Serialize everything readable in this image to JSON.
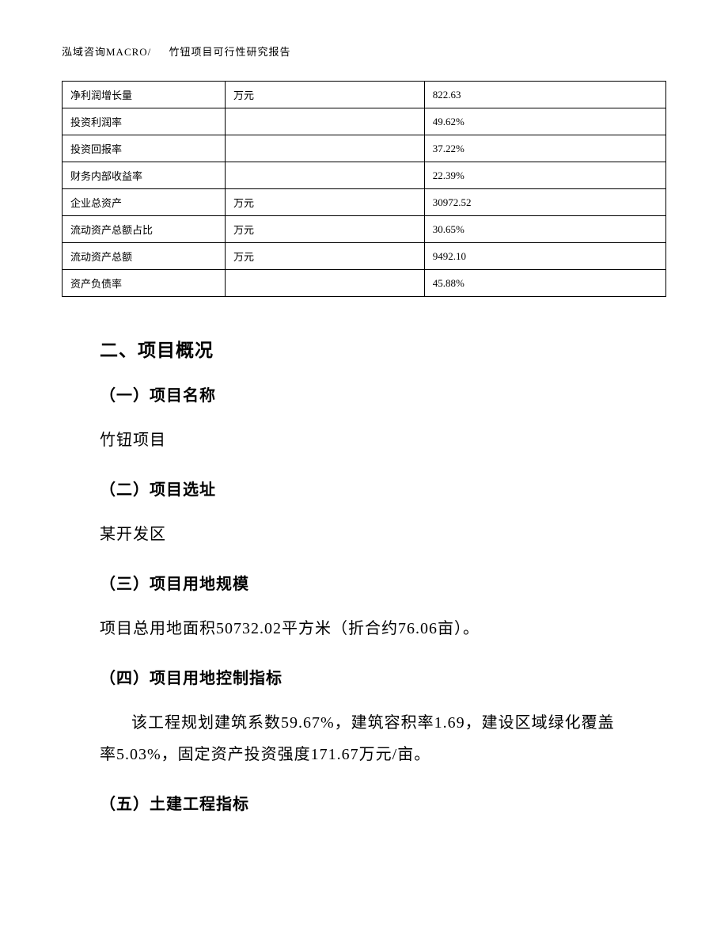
{
  "header": {
    "left": "泓域咨询MACRO/",
    "right": "竹钮项目可行性研究报告"
  },
  "table": {
    "columns": [
      {
        "width": "27%"
      },
      {
        "width": "33%"
      },
      {
        "width": "40%"
      }
    ],
    "rows": [
      [
        "净利润增长量",
        "万元",
        "822.63"
      ],
      [
        "投资利润率",
        "",
        "49.62%"
      ],
      [
        "投资回报率",
        "",
        "37.22%"
      ],
      [
        "财务内部收益率",
        "",
        "22.39%"
      ],
      [
        "企业总资产",
        "万元",
        "30972.52"
      ],
      [
        "流动资产总额占比",
        "万元",
        "30.65%"
      ],
      [
        "流动资产总额",
        "万元",
        "9492.10"
      ],
      [
        "资产负债率",
        "",
        "45.88%"
      ]
    ],
    "border_color": "#000000",
    "font_size": 13,
    "cell_padding": "7px 10px"
  },
  "sections": {
    "main_title": "二、项目概况",
    "items": [
      {
        "title": "（一）项目名称",
        "text": "竹钮项目",
        "text_indent": false
      },
      {
        "title": "（二）项目选址",
        "text": "某开发区",
        "text_indent": false
      },
      {
        "title": "（三）项目用地规模",
        "text": "项目总用地面积50732.02平方米（折合约76.06亩）。",
        "text_indent": false
      },
      {
        "title": "（四）项目用地控制指标",
        "text": "该工程规划建筑系数59.67%，建筑容积率1.69，建设区域绿化覆盖率5.03%，固定资产投资强度171.67万元/亩。",
        "text_indent": true
      },
      {
        "title": "（五）土建工程指标",
        "text": "",
        "text_indent": false
      }
    ]
  },
  "styling": {
    "background_color": "#ffffff",
    "text_color": "#000000",
    "body_font": "SimSun",
    "heading_font": "SimHei",
    "section_title_fontsize": 23,
    "sub_title_fontsize": 20,
    "body_text_fontsize": 20,
    "header_fontsize": 13,
    "line_height": 2.0
  }
}
